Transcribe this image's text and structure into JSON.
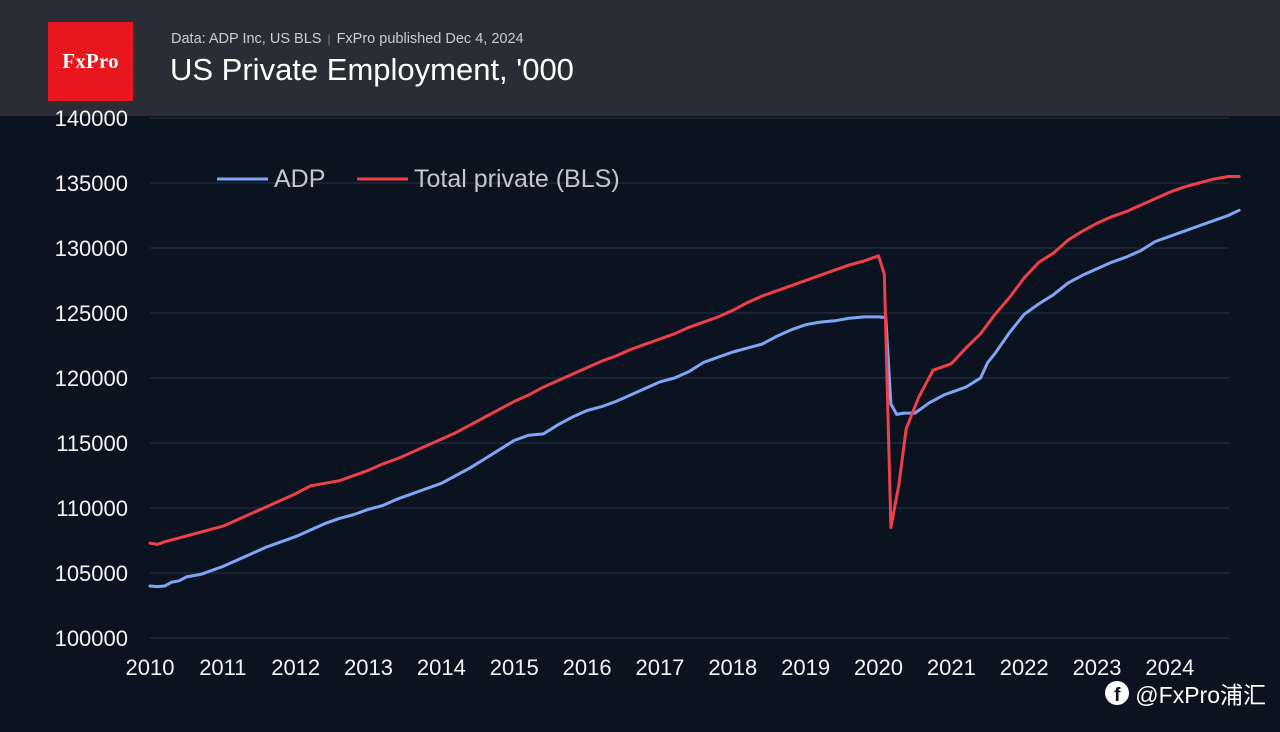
{
  "header": {
    "logo_text": "FxPro",
    "source_data": "Data: ADP Inc, US BLS",
    "source_sep": "|",
    "source_published": "FxPro published Dec 4, 2024",
    "title": "US Private Employment, '000"
  },
  "watermark": {
    "icon": "facebook-icon",
    "text": "@FxPro浦汇"
  },
  "colors": {
    "background": "#0c1320",
    "header_bg": "#2a2d35",
    "logo_bg": "#e8161e",
    "adp": "#7fa6f5",
    "bls": "#ef3f49",
    "grid": "#27324a"
  },
  "chart_data": {
    "type": "line",
    "title": "US Private Employment, '000",
    "xlabel": "",
    "ylabel": "",
    "xlim": [
      2010.0,
      2024.95
    ],
    "ylim": [
      100000,
      140000
    ],
    "yticks": [
      100000,
      105000,
      110000,
      115000,
      120000,
      125000,
      130000,
      135000,
      140000
    ],
    "ytick_labels": [
      "100000",
      "105000",
      "110000",
      "115000",
      "120000",
      "125000",
      "130000",
      "135000",
      "140000"
    ],
    "xticks": [
      2010,
      2011,
      2012,
      2013,
      2014,
      2015,
      2016,
      2017,
      2018,
      2019,
      2020,
      2021,
      2022,
      2023,
      2024
    ],
    "xtick_labels": [
      "2010",
      "2011",
      "2012",
      "2013",
      "2014",
      "2015",
      "2016",
      "2017",
      "2018",
      "2019",
      "2020",
      "2021",
      "2022",
      "2023",
      "2024"
    ],
    "grid": true,
    "legend": "top-left",
    "series": [
      {
        "name": "ADP",
        "color": "#7fa6f5",
        "points": [
          [
            2010.0,
            104000
          ],
          [
            2010.1,
            103950
          ],
          [
            2010.2,
            104000
          ],
          [
            2010.3,
            104300
          ],
          [
            2010.4,
            104400
          ],
          [
            2010.5,
            104700
          ],
          [
            2010.6,
            104800
          ],
          [
            2010.7,
            104900
          ],
          [
            2010.8,
            105100
          ],
          [
            2010.9,
            105300
          ],
          [
            2011.0,
            105500
          ],
          [
            2011.2,
            106000
          ],
          [
            2011.4,
            106500
          ],
          [
            2011.6,
            107000
          ],
          [
            2011.8,
            107400
          ],
          [
            2012.0,
            107800
          ],
          [
            2012.2,
            108300
          ],
          [
            2012.4,
            108800
          ],
          [
            2012.6,
            109200
          ],
          [
            2012.8,
            109500
          ],
          [
            2013.0,
            109900
          ],
          [
            2013.2,
            110200
          ],
          [
            2013.4,
            110700
          ],
          [
            2013.6,
            111100
          ],
          [
            2013.8,
            111500
          ],
          [
            2014.0,
            111900
          ],
          [
            2014.2,
            112500
          ],
          [
            2014.4,
            113100
          ],
          [
            2014.6,
            113800
          ],
          [
            2014.8,
            114500
          ],
          [
            2015.0,
            115200
          ],
          [
            2015.2,
            115600
          ],
          [
            2015.4,
            115700
          ],
          [
            2015.6,
            116400
          ],
          [
            2015.8,
            117000
          ],
          [
            2016.0,
            117500
          ],
          [
            2016.2,
            117800
          ],
          [
            2016.4,
            118200
          ],
          [
            2016.6,
            118700
          ],
          [
            2016.8,
            119200
          ],
          [
            2017.0,
            119700
          ],
          [
            2017.2,
            120000
          ],
          [
            2017.4,
            120500
          ],
          [
            2017.6,
            121200
          ],
          [
            2017.8,
            121600
          ],
          [
            2018.0,
            122000
          ],
          [
            2018.2,
            122300
          ],
          [
            2018.4,
            122600
          ],
          [
            2018.6,
            123200
          ],
          [
            2018.8,
            123700
          ],
          [
            2019.0,
            124100
          ],
          [
            2019.2,
            124300
          ],
          [
            2019.4,
            124400
          ],
          [
            2019.6,
            124600
          ],
          [
            2019.8,
            124700
          ],
          [
            2020.0,
            124700
          ],
          [
            2020.1,
            124650
          ],
          [
            2020.17,
            118000
          ],
          [
            2020.25,
            117200
          ],
          [
            2020.35,
            117300
          ],
          [
            2020.5,
            117300
          ],
          [
            2020.7,
            118100
          ],
          [
            2020.9,
            118700
          ],
          [
            2021.0,
            118900
          ],
          [
            2021.2,
            119300
          ],
          [
            2021.4,
            120000
          ],
          [
            2021.5,
            121200
          ],
          [
            2021.6,
            121900
          ],
          [
            2021.8,
            123500
          ],
          [
            2022.0,
            124900
          ],
          [
            2022.2,
            125700
          ],
          [
            2022.4,
            126400
          ],
          [
            2022.6,
            127300
          ],
          [
            2022.8,
            127900
          ],
          [
            2023.0,
            128400
          ],
          [
            2023.2,
            128900
          ],
          [
            2023.4,
            129300
          ],
          [
            2023.6,
            129800
          ],
          [
            2023.8,
            130500
          ],
          [
            2024.0,
            130900
          ],
          [
            2024.2,
            131300
          ],
          [
            2024.4,
            131700
          ],
          [
            2024.6,
            132100
          ],
          [
            2024.8,
            132500
          ],
          [
            2024.95,
            132900
          ]
        ]
      },
      {
        "name": "Total private (BLS)",
        "color": "#ef3f49",
        "points": [
          [
            2010.0,
            107300
          ],
          [
            2010.1,
            107200
          ],
          [
            2010.2,
            107400
          ],
          [
            2010.4,
            107700
          ],
          [
            2010.6,
            108000
          ],
          [
            2010.8,
            108300
          ],
          [
            2011.0,
            108600
          ],
          [
            2011.2,
            109100
          ],
          [
            2011.4,
            109600
          ],
          [
            2011.6,
            110100
          ],
          [
            2011.8,
            110600
          ],
          [
            2012.0,
            111100
          ],
          [
            2012.2,
            111700
          ],
          [
            2012.4,
            111900
          ],
          [
            2012.6,
            112100
          ],
          [
            2012.8,
            112500
          ],
          [
            2013.0,
            112900
          ],
          [
            2013.2,
            113400
          ],
          [
            2013.4,
            113800
          ],
          [
            2013.6,
            114300
          ],
          [
            2013.8,
            114800
          ],
          [
            2014.0,
            115300
          ],
          [
            2014.2,
            115800
          ],
          [
            2014.4,
            116400
          ],
          [
            2014.6,
            117000
          ],
          [
            2014.8,
            117600
          ],
          [
            2015.0,
            118200
          ],
          [
            2015.2,
            118700
          ],
          [
            2015.4,
            119300
          ],
          [
            2015.6,
            119800
          ],
          [
            2015.8,
            120300
          ],
          [
            2016.0,
            120800
          ],
          [
            2016.2,
            121300
          ],
          [
            2016.4,
            121700
          ],
          [
            2016.6,
            122200
          ],
          [
            2016.8,
            122600
          ],
          [
            2017.0,
            123000
          ],
          [
            2017.2,
            123400
          ],
          [
            2017.4,
            123900
          ],
          [
            2017.6,
            124300
          ],
          [
            2017.8,
            124700
          ],
          [
            2018.0,
            125200
          ],
          [
            2018.2,
            125800
          ],
          [
            2018.4,
            126300
          ],
          [
            2018.6,
            126700
          ],
          [
            2018.8,
            127100
          ],
          [
            2019.0,
            127500
          ],
          [
            2019.2,
            127900
          ],
          [
            2019.4,
            128300
          ],
          [
            2019.6,
            128700
          ],
          [
            2019.8,
            129000
          ],
          [
            2020.0,
            129400
          ],
          [
            2020.08,
            128000
          ],
          [
            2020.17,
            108500
          ],
          [
            2020.28,
            111800
          ],
          [
            2020.38,
            116100
          ],
          [
            2020.55,
            118500
          ],
          [
            2020.75,
            120600
          ],
          [
            2020.9,
            120900
          ],
          [
            2021.0,
            121100
          ],
          [
            2021.2,
            122300
          ],
          [
            2021.4,
            123400
          ],
          [
            2021.6,
            124900
          ],
          [
            2021.8,
            126200
          ],
          [
            2022.0,
            127700
          ],
          [
            2022.2,
            128900
          ],
          [
            2022.4,
            129600
          ],
          [
            2022.6,
            130600
          ],
          [
            2022.8,
            131300
          ],
          [
            2023.0,
            131900
          ],
          [
            2023.2,
            132400
          ],
          [
            2023.4,
            132800
          ],
          [
            2023.6,
            133300
          ],
          [
            2023.8,
            133800
          ],
          [
            2024.0,
            134300
          ],
          [
            2024.2,
            134700
          ],
          [
            2024.4,
            135000
          ],
          [
            2024.6,
            135300
          ],
          [
            2024.8,
            135500
          ],
          [
            2024.95,
            135500
          ]
        ]
      }
    ]
  }
}
